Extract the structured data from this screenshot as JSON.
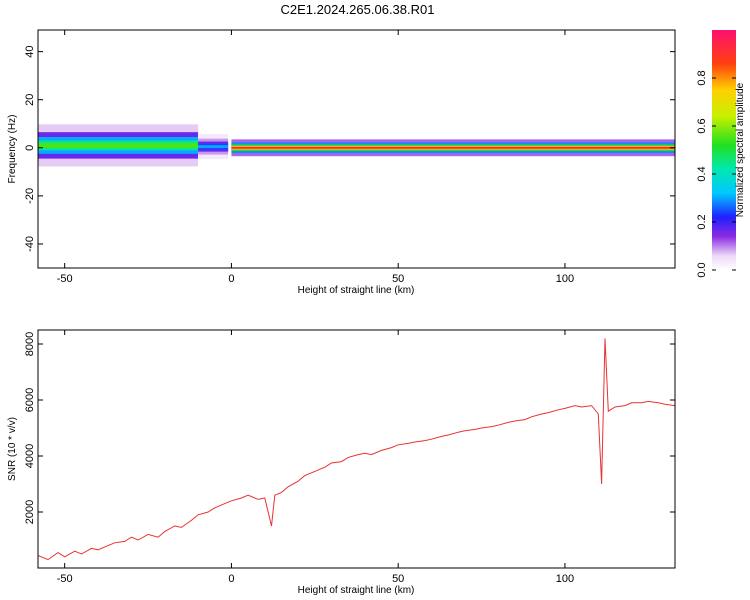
{
  "title": "C2E1.2024.265.06.38.R01",
  "chart_data": [
    {
      "type": "heatmap",
      "xlabel": "Height of straight line (km)",
      "ylabel": "Frequency (Hz)",
      "xlim": [
        -58,
        133
      ],
      "ylim": [
        -50,
        49
      ],
      "xticks": [
        -50,
        0,
        50,
        100
      ],
      "yticks": [
        -40,
        -20,
        0,
        20,
        40
      ],
      "colorbar": {
        "label": "Normalized spectral amplitude",
        "range": [
          0,
          1
        ],
        "ticks": [
          0.0,
          0.2,
          0.4,
          0.6,
          0.8
        ]
      },
      "ridge_segments": [
        {
          "x0": -58,
          "x1": -10,
          "center_hz": 1,
          "spread_hz": 5,
          "peak_amplitude": 0.55
        },
        {
          "x0": -10,
          "x1": -1,
          "center_hz": 0.5,
          "spread_hz": 3,
          "peak_amplitude": 0.3
        },
        {
          "x0": 0,
          "x1": 133,
          "center_hz": 0,
          "spread_hz": 2,
          "peak_amplitude": 0.95
        }
      ]
    },
    {
      "type": "line",
      "xlabel": "Height of straight line (km)",
      "ylabel": "SNR (10 * v/v)",
      "xlim": [
        -58,
        133
      ],
      "ylim": [
        0,
        8500
      ],
      "xticks": [
        -50,
        0,
        50,
        100
      ],
      "yticks": [
        2000,
        4000,
        6000,
        8000
      ],
      "series": [
        {
          "color": "#e83232",
          "x": [
            -58,
            -55,
            -52,
            -50,
            -47,
            -45,
            -42,
            -40,
            -37,
            -35,
            -32,
            -30,
            -28,
            -25,
            -22,
            -20,
            -17,
            -15,
            -12,
            -10,
            -7,
            -5,
            -2,
            0,
            3,
            5,
            8,
            10,
            12,
            13,
            15,
            17,
            20,
            22,
            25,
            28,
            30,
            33,
            35,
            38,
            40,
            42,
            45,
            48,
            50,
            53,
            55,
            58,
            60,
            63,
            65,
            68,
            70,
            73,
            75,
            78,
            80,
            83,
            85,
            88,
            90,
            93,
            95,
            98,
            100,
            103,
            105,
            108,
            110,
            111,
            112,
            113,
            115,
            118,
            120,
            123,
            125,
            128,
            130,
            133
          ],
          "y": [
            450,
            300,
            550,
            400,
            600,
            500,
            700,
            650,
            800,
            900,
            950,
            1100,
            1000,
            1200,
            1100,
            1300,
            1500,
            1450,
            1700,
            1900,
            2000,
            2150,
            2300,
            2400,
            2500,
            2600,
            2450,
            2500,
            1500,
            2600,
            2700,
            2900,
            3100,
            3300,
            3450,
            3600,
            3750,
            3800,
            3950,
            4050,
            4100,
            4050,
            4200,
            4300,
            4400,
            4450,
            4500,
            4550,
            4600,
            4700,
            4750,
            4850,
            4900,
            4950,
            5000,
            5050,
            5100,
            5200,
            5250,
            5300,
            5400,
            5500,
            5550,
            5650,
            5700,
            5800,
            5750,
            5800,
            5500,
            3000,
            8200,
            5600,
            5750,
            5800,
            5900,
            5900,
            5950,
            5900,
            5850,
            5800
          ]
        }
      ]
    }
  ]
}
